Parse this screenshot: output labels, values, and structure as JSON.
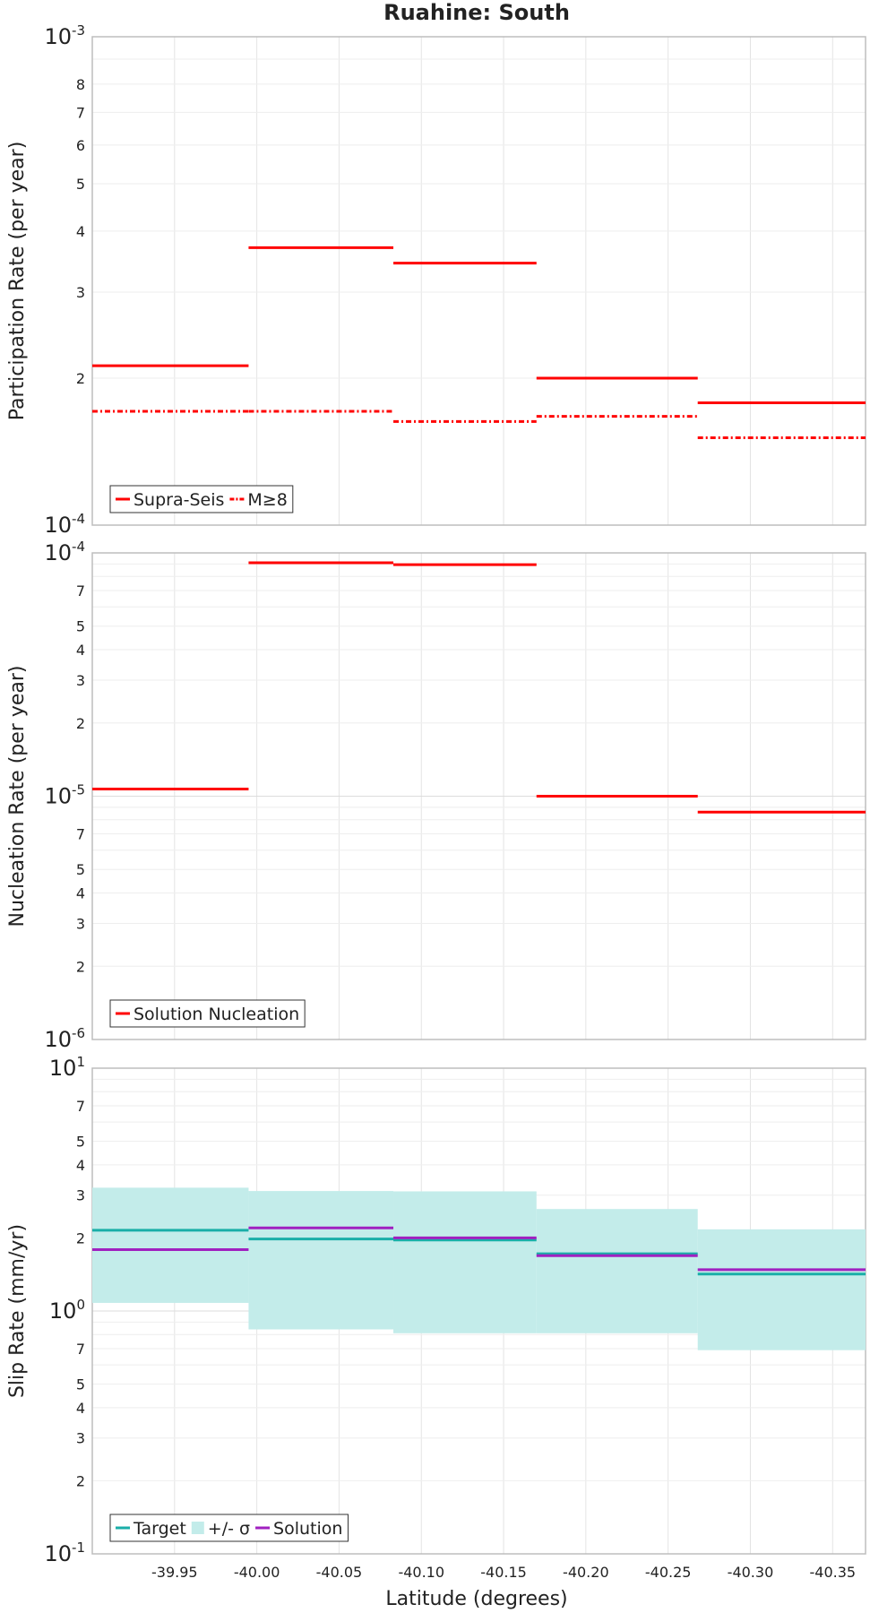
{
  "figure": {
    "title": "Ruahine: South",
    "xlabel": "Latitude (degrees)",
    "xticks": [
      "-39.95",
      "-40.00",
      "-40.05",
      "-40.10",
      "-40.15",
      "-40.20",
      "-40.25",
      "-40.30",
      "-40.35"
    ]
  },
  "chart_data": [
    {
      "type": "line",
      "style": "step",
      "ylabel": "Participation Rate (per year)",
      "yscale": "log",
      "ylim": [
        0.0001,
        0.001
      ],
      "xlim": [
        -39.9,
        -40.37
      ],
      "x_bins": [
        [
          -39.9,
          -39.995
        ],
        [
          -39.995,
          -40.083
        ],
        [
          -40.083,
          -40.17
        ],
        [
          -40.17,
          -40.268
        ],
        [
          -40.268,
          -40.37
        ]
      ],
      "series": [
        {
          "name": "Supra-Seis",
          "color": "#ff0000",
          "dash": "solid",
          "values": [
            0.000212,
            0.00037,
            0.000344,
            0.0002,
            0.000178
          ]
        },
        {
          "name": "M≥8",
          "color": "#ff0000",
          "dash": "dashdot",
          "values": [
            0.000171,
            0.000171,
            0.000163,
            0.000167,
            0.000151
          ]
        }
      ],
      "legend": {
        "position": "bottom-left"
      },
      "yticks": {
        "major": [
          "10-3",
          "10-4"
        ],
        "minor": [
          "8",
          "7",
          "6",
          "5",
          "4",
          "3",
          "2"
        ]
      }
    },
    {
      "type": "line",
      "style": "step",
      "ylabel": "Nucleation Rate (per year)",
      "yscale": "log",
      "ylim": [
        1e-06,
        0.0001
      ],
      "xlim": [
        -39.9,
        -40.37
      ],
      "x_bins": [
        [
          -39.9,
          -39.995
        ],
        [
          -39.995,
          -40.083
        ],
        [
          -40.083,
          -40.17
        ],
        [
          -40.17,
          -40.268
        ],
        [
          -40.268,
          -40.37
        ]
      ],
      "series": [
        {
          "name": "Solution Nucleation",
          "color": "#ff0000",
          "dash": "solid",
          "values": [
            1.07e-05,
            9.11e-05,
            8.95e-05,
            1e-05,
            8.6e-06
          ]
        }
      ],
      "legend": {
        "position": "bottom-left"
      },
      "yticks": {
        "major": [
          "10-4",
          "10-5",
          "10-6"
        ],
        "minor": [
          "7",
          "5",
          "4",
          "3",
          "2",
          "7",
          "5",
          "4",
          "3",
          "2"
        ]
      }
    },
    {
      "type": "line",
      "style": "step",
      "ylabel": "Slip Rate (mm/yr)",
      "yscale": "log",
      "ylim": [
        0.1,
        10
      ],
      "xlim": [
        -39.9,
        -40.37
      ],
      "x_bins": [
        [
          -39.9,
          -39.995
        ],
        [
          -39.995,
          -40.083
        ],
        [
          -40.083,
          -40.17
        ],
        [
          -40.17,
          -40.268
        ],
        [
          -40.268,
          -40.37
        ]
      ],
      "series": [
        {
          "name": "Target",
          "color": "#1aaea8",
          "dash": "solid",
          "values": [
            2.15,
            1.98,
            1.96,
            1.72,
            1.42
          ]
        },
        {
          "name": "+/- σ",
          "color": "#c3ecea",
          "type": "band",
          "lower": [
            1.08,
            0.84,
            0.81,
            0.81,
            0.69
          ],
          "upper": [
            3.22,
            3.12,
            3.11,
            2.63,
            2.17
          ]
        },
        {
          "name": "Solution",
          "color": "#a020c0",
          "dash": "solid",
          "values": [
            1.79,
            2.2,
            2.0,
            1.69,
            1.48
          ]
        }
      ],
      "legend": {
        "position": "bottom-left"
      },
      "yticks": {
        "major": [
          "101",
          "100",
          "10-1"
        ],
        "minor": [
          "7",
          "5",
          "4",
          "3",
          "2",
          "7",
          "5",
          "4",
          "3",
          "2"
        ]
      }
    }
  ]
}
